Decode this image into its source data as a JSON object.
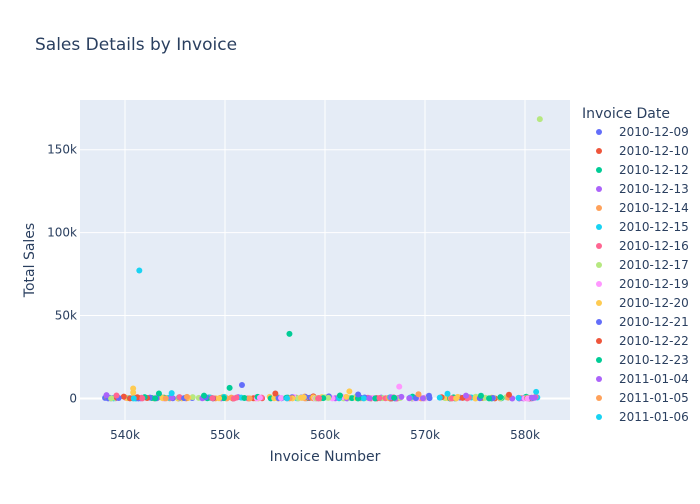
{
  "chart_data": {
    "type": "scatter",
    "title": "Sales Details by Invoice",
    "xlabel": "Invoice Number",
    "ylabel": "Total Sales",
    "x_ticks": [
      540000,
      550000,
      560000,
      570000,
      580000
    ],
    "x_tick_labels": [
      "540k",
      "550k",
      "560k",
      "570k",
      "580k"
    ],
    "y_ticks": [
      0,
      50000,
      100000,
      150000
    ],
    "y_tick_labels": [
      "0",
      "50k",
      "100k",
      "150k"
    ],
    "xlim": [
      535500,
      584500
    ],
    "ylim": [
      -13000,
      180000
    ],
    "legend": {
      "title": "Invoice Date",
      "placement": "right",
      "entries": [
        {
          "label": "2010-12-09",
          "color": "#636efa"
        },
        {
          "label": "2010-12-10",
          "color": "#EF553B"
        },
        {
          "label": "2010-12-12",
          "color": "#00cc96"
        },
        {
          "label": "2010-12-13",
          "color": "#ab63fa"
        },
        {
          "label": "2010-12-14",
          "color": "#FFA15A"
        },
        {
          "label": "2010-12-15",
          "color": "#19d3f3"
        },
        {
          "label": "2010-12-16",
          "color": "#FF6692"
        },
        {
          "label": "2010-12-17",
          "color": "#B6E880"
        },
        {
          "label": "2010-12-19",
          "color": "#FF97FF"
        },
        {
          "label": "2010-12-20",
          "color": "#FECB52"
        },
        {
          "label": "2010-12-21",
          "color": "#636efa"
        },
        {
          "label": "2010-12-22",
          "color": "#EF553B"
        },
        {
          "label": "2010-12-23",
          "color": "#00cc96"
        },
        {
          "label": "2011-01-04",
          "color": "#ab63fa"
        },
        {
          "label": "2011-01-05",
          "color": "#FFA15A"
        },
        {
          "label": "2011-01-06",
          "color": "#19d3f3"
        }
      ]
    },
    "colors": [
      "#636efa",
      "#EF553B",
      "#00cc96",
      "#ab63fa",
      "#FFA15A",
      "#19d3f3",
      "#FF6692",
      "#B6E880",
      "#FF97FF",
      "#FECB52"
    ],
    "points": [
      {
        "x": 581483,
        "y": 168470,
        "color": "#B6E880"
      },
      {
        "x": 541431,
        "y": 77184,
        "color": "#19d3f3"
      },
      {
        "x": 556444,
        "y": 38970,
        "color": "#00cc96"
      },
      {
        "x": 551697,
        "y": 8100,
        "color": "#636efa"
      },
      {
        "x": 567423,
        "y": 7100,
        "color": "#FF97FF"
      },
      {
        "x": 550461,
        "y": 6400,
        "color": "#00cc96"
      },
      {
        "x": 540815,
        "y": 6000,
        "color": "#FECB52"
      },
      {
        "x": 562439,
        "y": 4300,
        "color": "#FECB52"
      },
      {
        "x": 581115,
        "y": 4000,
        "color": "#19d3f3"
      },
      {
        "x": 540818,
        "y": 3600,
        "color": "#FECB52"
      },
      {
        "x": 544667,
        "y": 3200,
        "color": "#19d3f3"
      },
      {
        "x": 543395,
        "y": 3000,
        "color": "#00cc96"
      },
      {
        "x": 555036,
        "y": 3000,
        "color": "#EF553B"
      },
      {
        "x": 572250,
        "y": 2800,
        "color": "#19d3f3"
      },
      {
        "x": 569350,
        "y": 2500,
        "color": "#FFA15A"
      },
      {
        "x": 563312,
        "y": 2400,
        "color": "#636efa"
      },
      {
        "x": 578400,
        "y": 2200,
        "color": "#EF553B"
      },
      {
        "x": 538150,
        "y": 2000,
        "color": "#ab63fa"
      },
      {
        "x": 539150,
        "y": 1800,
        "color": "#FF6692"
      },
      {
        "x": 561500,
        "y": 1800,
        "color": "#00cc96"
      },
      {
        "x": 547900,
        "y": 1700,
        "color": "#00cc96"
      },
      {
        "x": 574100,
        "y": 1700,
        "color": "#ab63fa"
      },
      {
        "x": 575600,
        "y": 1600,
        "color": "#00cc96"
      },
      {
        "x": 570400,
        "y": 1600,
        "color": "#636efa"
      }
    ]
  }
}
